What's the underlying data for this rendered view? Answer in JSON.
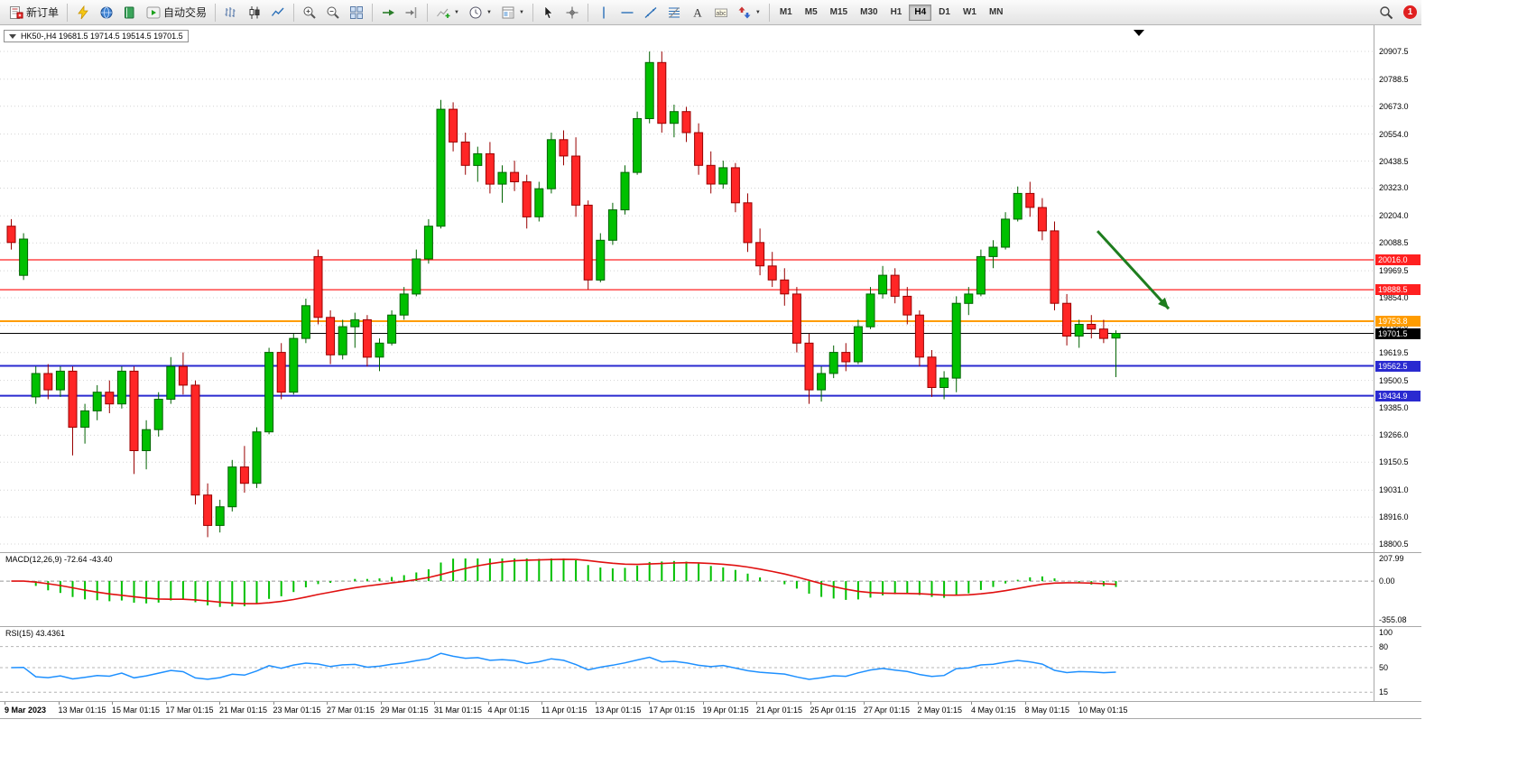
{
  "toolbar": {
    "items": [
      {
        "type": "button",
        "name": "new-order-button",
        "icon": "new-order-icon",
        "label": "新订单"
      },
      {
        "type": "divider"
      },
      {
        "type": "button",
        "name": "charts-button",
        "icon": "yellow-lightning-icon"
      },
      {
        "type": "button",
        "name": "profiles-button",
        "icon": "blue-globe-icon"
      },
      {
        "type": "button",
        "name": "market-watch-button",
        "icon": "green-book-icon"
      },
      {
        "type": "button",
        "name": "auto-trading-button",
        "icon": "play-icon",
        "label": "自动交易"
      },
      {
        "type": "divider"
      },
      {
        "type": "button",
        "name": "bar-chart-button",
        "icon": "bars-icon"
      },
      {
        "type": "button",
        "name": "candlestick-chart-button",
        "icon": "candles-icon"
      },
      {
        "type": "button",
        "name": "line-chart-button",
        "icon": "line-icon"
      },
      {
        "type": "divider"
      },
      {
        "type": "button",
        "name": "zoom-in-button",
        "icon": "zoom-in-icon"
      },
      {
        "type": "button",
        "name": "zoom-out-button",
        "icon": "zoom-out-icon"
      },
      {
        "type": "button",
        "name": "tile-windows-button",
        "icon": "tile-icon"
      },
      {
        "type": "divider"
      },
      {
        "type": "button",
        "name": "auto-scroll-button",
        "icon": "auto-scroll-icon"
      },
      {
        "type": "button",
        "name": "chart-shift-button",
        "icon": "chart-shift-icon"
      },
      {
        "type": "divider"
      },
      {
        "type": "button",
        "name": "indicators-button",
        "icon": "indicators-icon",
        "dropdown": true
      },
      {
        "type": "button",
        "name": "periods-button",
        "icon": "clock-icon",
        "dropdown": true
      },
      {
        "type": "button",
        "name": "templates-button",
        "icon": "template-icon",
        "dropdown": true
      },
      {
        "type": "divider"
      },
      {
        "type": "button",
        "name": "cursor-button",
        "icon": "cursor-icon"
      },
      {
        "type": "button",
        "name": "crosshair-button",
        "icon": "crosshair-icon"
      },
      {
        "type": "divider"
      },
      {
        "type": "button",
        "name": "vertical-line-button",
        "icon": "vline-icon"
      },
      {
        "type": "button",
        "name": "horizontal-line-button",
        "icon": "hline-icon"
      },
      {
        "type": "button",
        "name": "trendline-button",
        "icon": "trendline-icon"
      },
      {
        "type": "button",
        "name": "fibonacci-button",
        "icon": "fibonacci-icon"
      },
      {
        "type": "button",
        "name": "text-button",
        "icon": "text-icon"
      },
      {
        "type": "button",
        "name": "text-label-button",
        "icon": "label-icon"
      },
      {
        "type": "button",
        "name": "arrows-button",
        "icon": "arrows-icon",
        "dropdown": true
      },
      {
        "type": "divider"
      }
    ],
    "timeframes": [
      "M1",
      "M5",
      "M15",
      "M30",
      "H1",
      "H4",
      "D1",
      "W1",
      "MN"
    ],
    "active_timeframe": "H4",
    "right_items": [
      {
        "type": "button",
        "name": "search-button",
        "icon": "search-icon"
      },
      {
        "type": "badge",
        "name": "notification-badge",
        "label": "1",
        "color": "#e02020"
      }
    ]
  },
  "chart": {
    "symbol_header": "HK50-,H4 19681.5 19714.5 19514.5 19701.5"
  },
  "chart_data": {
    "type": "candlestick",
    "symbol": "HK50-",
    "timeframe": "H4",
    "last_ohlc": {
      "open": 19681.5,
      "high": 19714.5,
      "low": 19514.5,
      "close": 19701.5
    },
    "colors": {
      "bull": "#00c000",
      "bull_border": "#006300",
      "bear": "#ff2626",
      "bear_border": "#990000"
    },
    "price_axis": {
      "max": 20907.5,
      "min": 18800.5,
      "labels": [
        20907.5,
        20788.5,
        20673.0,
        20554.0,
        20438.5,
        20323.0,
        20204.0,
        20088.5,
        19969.5,
        19854.0,
        19735.0,
        19619.5,
        19500.5,
        19385.0,
        19266.0,
        19150.5,
        19031.0,
        18916.0,
        18800.5
      ]
    },
    "time_labels": [
      "9 Mar 2023",
      "13 Mar 01:15",
      "15 Mar 01:15",
      "17 Mar 01:15",
      "21 Mar 01:15",
      "23 Mar 01:15",
      "27 Mar 01:15",
      "29 Mar 01:15",
      "31 Mar 01:15",
      "4 Apr 01:15",
      "11 Apr 01:15",
      "13 Apr 01:15",
      "17 Apr 01:15",
      "19 Apr 01:15",
      "21 Apr 01:15",
      "25 Apr 01:15",
      "27 Apr 01:15",
      "2 May 01:15",
      "4 May 01:15",
      "8 May 01:15",
      "10 May 01:15"
    ],
    "horizontal_lines": [
      {
        "price": 20016.0,
        "label": "20016.0",
        "color": "#ff2020",
        "width": 1.3
      },
      {
        "price": 19888.5,
        "label": "19888.5",
        "color": "#ff2020",
        "width": 1.3
      },
      {
        "price": 19753.8,
        "label": "19753.8",
        "color": "#ff9c00",
        "width": 2
      },
      {
        "price": 19701.5,
        "label": "19701.5",
        "color": "#000000",
        "width": 1
      },
      {
        "price": 19562.5,
        "label": "19562.5",
        "color": "#2a2ad0",
        "width": 2
      },
      {
        "price": 19434.9,
        "label": "19434.9",
        "color": "#2a2ad0",
        "width": 2
      }
    ],
    "candles": [
      [
        20160,
        20190,
        20060,
        20090
      ],
      [
        19950,
        20130,
        19930,
        20105
      ],
      [
        19430,
        19560,
        19400,
        19530
      ],
      [
        19530,
        19570,
        19420,
        19460
      ],
      [
        19460,
        19560,
        19430,
        19540
      ],
      [
        19540,
        19560,
        19180,
        19300
      ],
      [
        19300,
        19400,
        19230,
        19370
      ],
      [
        19370,
        19480,
        19330,
        19450
      ],
      [
        19450,
        19500,
        19360,
        19400
      ],
      [
        19400,
        19560,
        19380,
        19540
      ],
      [
        19540,
        19560,
        19100,
        19200
      ],
      [
        19200,
        19330,
        19120,
        19290
      ],
      [
        19290,
        19450,
        19260,
        19420
      ],
      [
        19420,
        19600,
        19400,
        19560
      ],
      [
        19560,
        19620,
        19440,
        19480
      ],
      [
        19480,
        19500,
        18970,
        19010
      ],
      [
        19010,
        19060,
        18830,
        18880
      ],
      [
        18880,
        18990,
        18850,
        18960
      ],
      [
        18960,
        19160,
        18940,
        19130
      ],
      [
        19130,
        19220,
        19020,
        19060
      ],
      [
        19060,
        19300,
        19040,
        19280
      ],
      [
        19280,
        19640,
        19270,
        19620
      ],
      [
        19620,
        19660,
        19420,
        19450
      ],
      [
        19450,
        19700,
        19440,
        19680
      ],
      [
        19680,
        19850,
        19660,
        19820
      ],
      [
        20030,
        20060,
        19740,
        19770
      ],
      [
        19770,
        19800,
        19570,
        19610
      ],
      [
        19610,
        19760,
        19590,
        19730
      ],
      [
        19730,
        19790,
        19640,
        19760
      ],
      [
        19760,
        19780,
        19560,
        19600
      ],
      [
        19600,
        19680,
        19540,
        19660
      ],
      [
        19660,
        19800,
        19650,
        19780
      ],
      [
        19780,
        19900,
        19760,
        19870
      ],
      [
        19870,
        20060,
        19860,
        20020
      ],
      [
        20020,
        20190,
        20000,
        20160
      ],
      [
        20160,
        20700,
        20150,
        20660
      ],
      [
        20660,
        20690,
        20480,
        20520
      ],
      [
        20520,
        20560,
        20380,
        20420
      ],
      [
        20420,
        20500,
        20350,
        20470
      ],
      [
        20470,
        20520,
        20300,
        20340
      ],
      [
        20340,
        20420,
        20260,
        20390
      ],
      [
        20390,
        20440,
        20310,
        20350
      ],
      [
        20350,
        20380,
        20150,
        20200
      ],
      [
        20200,
        20350,
        20180,
        20320
      ],
      [
        20320,
        20560,
        20300,
        20530
      ],
      [
        20530,
        20570,
        20420,
        20460
      ],
      [
        20460,
        20540,
        20200,
        20250
      ],
      [
        20250,
        20270,
        19890,
        19930
      ],
      [
        19930,
        20130,
        19920,
        20100
      ],
      [
        20100,
        20260,
        20080,
        20230
      ],
      [
        20230,
        20420,
        20210,
        20390
      ],
      [
        20390,
        20650,
        20380,
        20620
      ],
      [
        20620,
        20907,
        20600,
        20860
      ],
      [
        20860,
        20907,
        20560,
        20600
      ],
      [
        20600,
        20680,
        20540,
        20650
      ],
      [
        20650,
        20670,
        20520,
        20560
      ],
      [
        20560,
        20600,
        20380,
        20420
      ],
      [
        20420,
        20480,
        20300,
        20340
      ],
      [
        20340,
        20440,
        20320,
        20410
      ],
      [
        20410,
        20430,
        20220,
        20260
      ],
      [
        20260,
        20300,
        20050,
        20090
      ],
      [
        20090,
        20150,
        19950,
        19990
      ],
      [
        19990,
        20050,
        19900,
        19930
      ],
      [
        19930,
        19980,
        19820,
        19870
      ],
      [
        19870,
        19900,
        19620,
        19660
      ],
      [
        19660,
        19700,
        19400,
        19460
      ],
      [
        19460,
        19560,
        19410,
        19530
      ],
      [
        19530,
        19650,
        19510,
        19620
      ],
      [
        19620,
        19660,
        19540,
        19580
      ],
      [
        19580,
        19760,
        19570,
        19730
      ],
      [
        19730,
        19900,
        19720,
        19870
      ],
      [
        19870,
        19990,
        19850,
        19950
      ],
      [
        19950,
        19980,
        19830,
        19860
      ],
      [
        19860,
        19900,
        19740,
        19780
      ],
      [
        19780,
        19800,
        19560,
        19600
      ],
      [
        19600,
        19630,
        19430,
        19470
      ],
      [
        19470,
        19540,
        19420,
        19510
      ],
      [
        19510,
        19860,
        19450,
        19830
      ],
      [
        19830,
        19900,
        19780,
        19870
      ],
      [
        19870,
        20060,
        19860,
        20030
      ],
      [
        20030,
        20100,
        19980,
        20070
      ],
      [
        20070,
        20220,
        20060,
        20190
      ],
      [
        20190,
        20330,
        20180,
        20300
      ],
      [
        20300,
        20350,
        20200,
        20240
      ],
      [
        20240,
        20280,
        20100,
        20140
      ],
      [
        20140,
        20180,
        19800,
        19830
      ],
      [
        19830,
        19870,
        19650,
        19690
      ],
      [
        19690,
        19760,
        19640,
        19740
      ],
      [
        19740,
        19780,
        19680,
        19720
      ],
      [
        19720,
        19760,
        19660,
        19680
      ],
      [
        19681.5,
        19714.5,
        19514.5,
        19701.5
      ]
    ],
    "annotation_arrow": {
      "from_bar": 88.5,
      "from_price": 20139,
      "to_bar": 94.3,
      "to_price": 19807,
      "color": "#1e7d1e"
    },
    "indicators": {
      "macd": {
        "label": "MACD(12,26,9) -72.64 -43.40",
        "fast": 12,
        "slow": 26,
        "signal_period": 9,
        "value": -72.64,
        "signal_value": -43.4,
        "axis": [
          {
            "v": 207.99,
            "t": "207.99"
          },
          {
            "v": 0,
            "t": "0.00"
          },
          {
            "v": -355.08,
            "t": "-355.08"
          }
        ],
        "scale_max": 207.99,
        "scale_min": -355.08,
        "histogram_color": "#00c000",
        "signal_color": "#e01010"
      },
      "rsi": {
        "label": "RSI(15) 43.4361",
        "period": 15,
        "value": 43.4361,
        "axis": [
          {
            "v": 100,
            "t": "100"
          },
          {
            "v": 80,
            "t": "80"
          },
          {
            "v": 50,
            "t": "50"
          },
          {
            "v": 15,
            "t": "15"
          }
        ],
        "levels": [
          80,
          50,
          15
        ],
        "line_color": "#1e90ff"
      }
    }
  }
}
